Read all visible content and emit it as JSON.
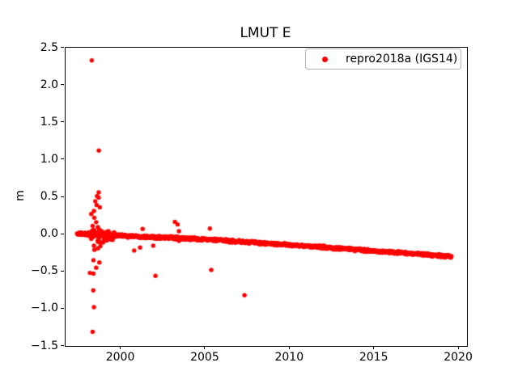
{
  "chart_data": {
    "type": "scatter",
    "title": "LMUT E",
    "xlabel": "",
    "ylabel": "m",
    "xlim": [
      1996.74,
      2020.5
    ],
    "ylim": [
      -1.5,
      2.5
    ],
    "xticks": [
      {
        "v": 2000,
        "label": "2000"
      },
      {
        "v": 2005,
        "label": "2005"
      },
      {
        "v": 2010,
        "label": "2010"
      },
      {
        "v": 2015,
        "label": "2015"
      },
      {
        "v": 2020,
        "label": "2020"
      }
    ],
    "yticks": [
      {
        "v": 2.5,
        "label": "2.5"
      },
      {
        "v": 2.0,
        "label": "2.0"
      },
      {
        "v": 1.5,
        "label": "1.5"
      },
      {
        "v": 1.0,
        "label": "1.0"
      },
      {
        "v": 0.5,
        "label": "0.5"
      },
      {
        "v": 0.0,
        "label": "0.0"
      },
      {
        "v": -0.5,
        "label": "−0.5"
      },
      {
        "v": -1.0,
        "label": "−1.0"
      },
      {
        "v": -1.5,
        "label": "−1.5"
      }
    ],
    "grid": false,
    "legend_position": "upper right",
    "series": [
      {
        "name": "repro2018a (IGS14)",
        "color": "#ff0000",
        "marker_diameter_px": 5.4,
        "trend": {
          "description": "dense near-weekly solutions forming a thick, slowly declining trail",
          "start_year": 1997.42,
          "end_year": 2019.58,
          "step_years": 0.02,
          "anchors": [
            [
              1997.42,
              0.005
            ],
            [
              2000.0,
              -0.02
            ],
            [
              2005.0,
              -0.07
            ],
            [
              2010.0,
              -0.145
            ],
            [
              2015.0,
              -0.225
            ],
            [
              2019.58,
              -0.3
            ]
          ],
          "jitter_std_m": 0.009
        },
        "early_cluster": {
          "year_range": [
            1998.0,
            1999.7
          ],
          "extra_points": 60,
          "value_std_m": 0.045,
          "max_offset_m": 0.1
        },
        "outliers": [
          [
            1998.29,
            2.33
          ],
          [
            1998.71,
            1.12
          ],
          [
            1998.7,
            0.56
          ],
          [
            1998.7,
            0.49
          ],
          [
            1998.6,
            0.51
          ],
          [
            1998.5,
            0.44
          ],
          [
            1998.58,
            0.39
          ],
          [
            1998.77,
            0.36
          ],
          [
            1998.42,
            0.31
          ],
          [
            1998.26,
            0.27
          ],
          [
            1998.44,
            0.22
          ],
          [
            1998.55,
            0.16
          ],
          [
            1998.34,
            0.11
          ],
          [
            2001.3,
            0.07
          ],
          [
            2003.21,
            0.165
          ],
          [
            2003.37,
            0.13
          ],
          [
            2003.45,
            0.04
          ],
          [
            2005.28,
            0.075
          ],
          [
            1998.66,
            -0.105
          ],
          [
            1998.42,
            -0.155
          ],
          [
            1998.8,
            -0.16
          ],
          [
            1998.45,
            -0.21
          ],
          [
            1998.66,
            -0.19
          ],
          [
            2000.8,
            -0.22
          ],
          [
            2001.15,
            -0.18
          ],
          [
            2001.93,
            -0.155
          ],
          [
            2003.45,
            -0.09
          ],
          [
            1998.39,
            -0.35
          ],
          [
            1998.74,
            -0.38
          ],
          [
            1998.55,
            -0.45
          ],
          [
            1998.18,
            -0.52
          ],
          [
            1998.39,
            -0.53
          ],
          [
            2002.06,
            -0.56
          ],
          [
            2005.36,
            -0.48
          ],
          [
            1998.38,
            -0.755
          ],
          [
            1998.42,
            -0.98
          ],
          [
            2007.33,
            -0.82
          ],
          [
            1998.34,
            -1.31
          ]
        ]
      }
    ]
  }
}
